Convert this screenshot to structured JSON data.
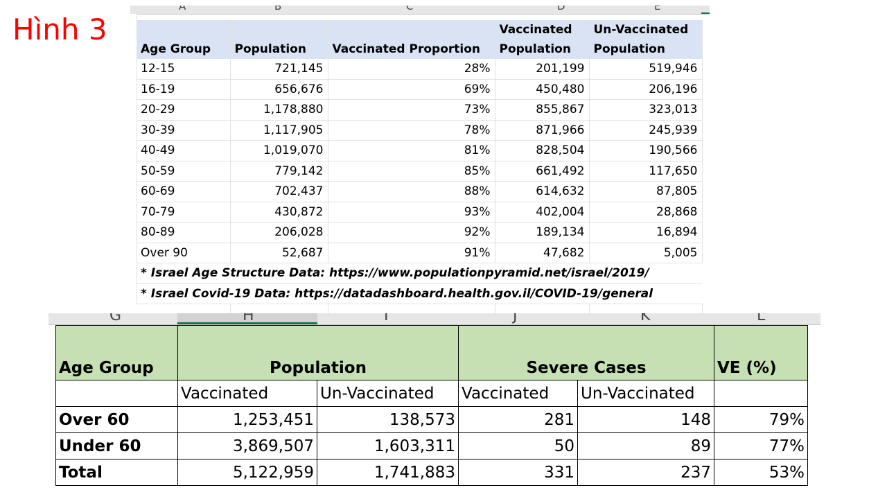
{
  "title": "Hình 3",
  "top_table": {
    "col_letters": [
      "A",
      "B",
      "C",
      "D",
      "E"
    ],
    "headers": [
      "Age Group",
      "Population",
      "Vaccinated Proportion",
      "Vaccinated Population",
      "Un-Vaccinated Population"
    ],
    "rows": [
      [
        "12-15",
        "721,145",
        "28%",
        "201,199",
        "519,946"
      ],
      [
        "16-19",
        "656,676",
        "69%",
        "450,480",
        "206,196"
      ],
      [
        "20-29",
        "1,178,880",
        "73%",
        "855,867",
        "323,013"
      ],
      [
        "30-39",
        "1,117,905",
        "78%",
        "871,966",
        "245,939"
      ],
      [
        "40-49",
        "1,019,070",
        "81%",
        "828,504",
        "190,566"
      ],
      [
        "50-59",
        "779,142",
        "85%",
        "661,492",
        "117,650"
      ],
      [
        "60-69",
        "702,437",
        "88%",
        "614,632",
        "87,805"
      ],
      [
        "70-79",
        "430,872",
        "93%",
        "402,004",
        "28,868"
      ],
      [
        "80-89",
        "206,028",
        "92%",
        "189,134",
        "16,894"
      ],
      [
        "Over 90",
        "52,687",
        "91%",
        "47,682",
        "5,005"
      ]
    ],
    "notes": [
      "* Israel Age Structure Data: https://www.populationpyramid.net/israel/2019/",
      "* Israel Covid-19 Data: https://datadashboard.health.gov.il/COVID-19/general"
    ]
  },
  "bottom_table": {
    "col_letters": [
      "G",
      "H",
      "I",
      "J",
      "K",
      "L"
    ],
    "header_age": "Age Group",
    "header_population": "Population",
    "header_severe": "Severe Cases",
    "header_ve": "VE (%)",
    "sub_headers": [
      "Vaccinated",
      "Un-Vaccinated",
      "Vaccinated",
      "Un-Vaccinated"
    ],
    "rows": [
      [
        "Over 60",
        "1,253,451",
        "138,573",
        "281",
        "148",
        "79%"
      ],
      [
        "Under 60",
        "3,869,507",
        "1,603,311",
        "50",
        "89",
        "77%"
      ],
      [
        "Total",
        "5,122,959",
        "1,741,883",
        "331",
        "237",
        "53%"
      ]
    ]
  }
}
